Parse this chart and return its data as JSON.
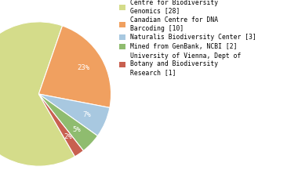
{
  "labels": [
    "Centre for Biodiversity\nGenomics [28]",
    "Canadian Centre for DNA\nBarcoding [10]",
    "Naturalis Biodiversity Center [3]",
    "Mined from GenBank, NCBI [2]",
    "University of Vienna, Dept of\nBotany and Biodiversity\nResearch [1]"
  ],
  "values": [
    28,
    10,
    3,
    2,
    1
  ],
  "colors": [
    "#d4dc8a",
    "#f0a060",
    "#a8c8e0",
    "#8fbc6f",
    "#c86050"
  ],
  "background_color": "#ffffff",
  "text_color": "#ffffff",
  "startangle": -60
}
